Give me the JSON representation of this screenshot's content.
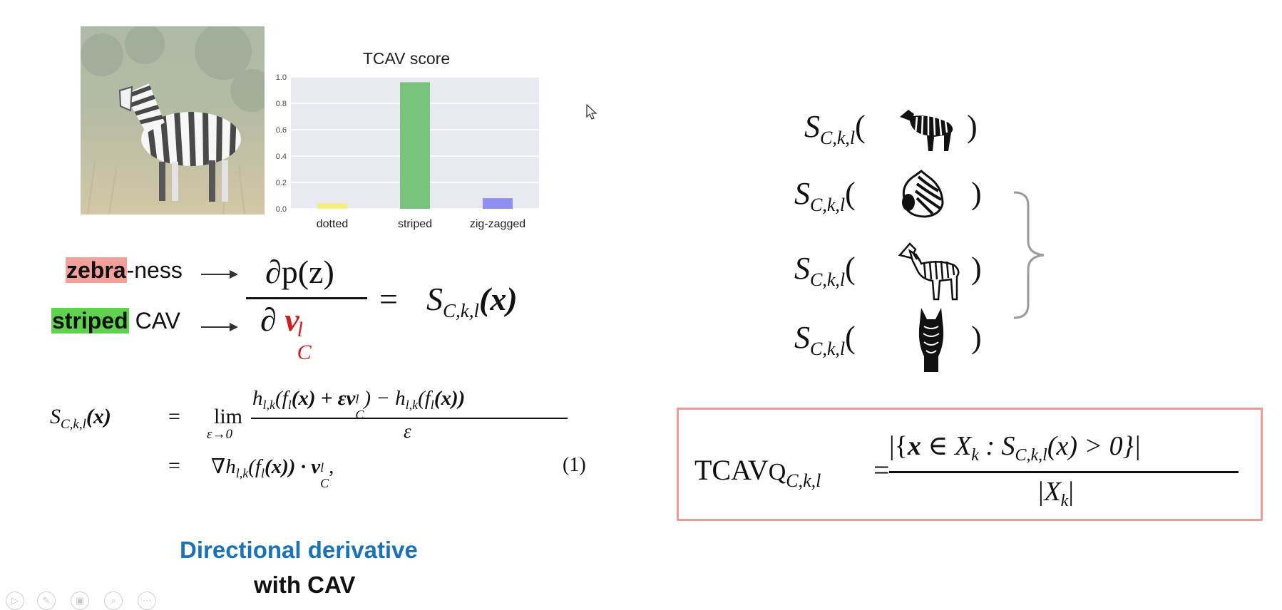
{
  "chart_data": {
    "type": "bar",
    "title": "TCAV score",
    "categories": [
      "dotted",
      "striped",
      "zig-zagged"
    ],
    "values": [
      0.04,
      0.96,
      0.08
    ],
    "colors": [
      "#f2f07a",
      "#79c47c",
      "#8f8ff3"
    ],
    "ylim": [
      0,
      1.0
    ],
    "yticks": [
      "0.0",
      "0.2",
      "0.4",
      "0.6",
      "0.8",
      "1.0"
    ],
    "grid": true
  },
  "labels": {
    "zebra": "zebra",
    "ness": "-ness",
    "striped": "striped",
    "cav": "CAV"
  },
  "formula_main": {
    "numerator": "∂p(z)",
    "partial": "∂",
    "v": "v",
    "sup_l": "l",
    "sub_c": "C",
    "equals": "=",
    "rhs_s": "S",
    "rhs_sub": "C,k,l",
    "rhs_arg": "(x)"
  },
  "eq1": {
    "lhs": "S",
    "lhs_sub": "C,k,l",
    "lhs_arg": "(x)",
    "eq": "=",
    "lim": "lim",
    "lim_sub": "ε→0",
    "numer": "h",
    "numer_rest": "(f",
    "numer_mid": "(x) + εv",
    "numer_end": ") − h",
    "numer_end2": "(f",
    "numer_end3": "(x))",
    "sub_lk": "l,k",
    "sub_l": "l",
    "sup_l": "l",
    "sub_c": "C",
    "denom": "ε",
    "line2": "∇h",
    "line2_rest": "(f",
    "line2_mid": "(x)) · v",
    "line2_end": ",",
    "number": "(1)"
  },
  "caption": {
    "line1": "Directional derivative",
    "line2": "with CAV"
  },
  "s_rows": {
    "s": "S",
    "sub": "C,k,l",
    "open": "(",
    "close": ")"
  },
  "tcav_formula": {
    "lhs": "TCAV",
    "lhs_q": "Q",
    "lhs_sub": "C,k,l",
    "eq": "=",
    "numer_open": "|{",
    "numer_x": "x",
    "numer_in": " ∈ X",
    "numer_k": "k",
    "numer_colon": " : S",
    "numer_sub": "C,k,l",
    "numer_arg": "(x) > 0}|",
    "denom": "|X",
    "denom_k": "k",
    "denom_close": "|"
  },
  "controls": [
    "play-icon",
    "pen-icon",
    "save-icon",
    "zoom-icon",
    "more-icon"
  ]
}
